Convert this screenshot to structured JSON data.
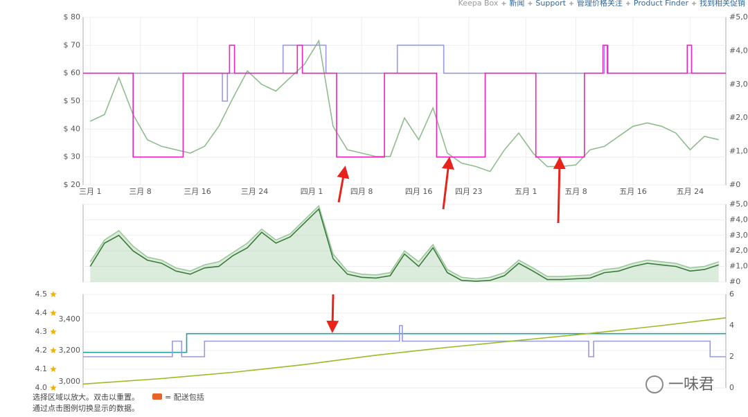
{
  "nav": [
    "Keepa Box",
    "新闻",
    "Support",
    "管理价格关注",
    "Product Finder",
    "找到相关促销"
  ],
  "chart_data": [
    {
      "type": "line",
      "grid": true,
      "xlim": [
        -1,
        89
      ],
      "xticks": [
        {
          "value": 0,
          "label": "三月 1"
        },
        {
          "value": 7,
          "label": "三月 8"
        },
        {
          "value": 15,
          "label": "三月 16"
        },
        {
          "value": 23,
          "label": "三月 24"
        },
        {
          "value": 31,
          "label": "四月 1"
        },
        {
          "value": 38,
          "label": "四月 8"
        },
        {
          "value": 46,
          "label": "四月 16"
        },
        {
          "value": 53,
          "label": "四月 23"
        },
        {
          "value": 61,
          "label": "五月 1"
        },
        {
          "value": 68,
          "label": "五月 8"
        },
        {
          "value": 76,
          "label": "五月 16"
        },
        {
          "value": 84,
          "label": "五月 24"
        }
      ],
      "ylim": [
        20,
        80
      ],
      "yticks": [
        {
          "value": 20,
          "label": "$ 20"
        },
        {
          "value": 30,
          "label": "$ 30"
        },
        {
          "value": 40,
          "label": "$ 40"
        },
        {
          "value": 50,
          "label": "$ 50"
        },
        {
          "value": 60,
          "label": "$ 60"
        },
        {
          "value": 70,
          "label": "$ 70"
        },
        {
          "value": 80,
          "label": "$ 80"
        }
      ],
      "y2lim": [
        0,
        5000
      ],
      "y2ticks": [
        {
          "value": 0,
          "label": "#0"
        },
        {
          "value": 1000,
          "label": "#1,000"
        },
        {
          "value": 2000,
          "label": "#2,000"
        },
        {
          "value": 3000,
          "label": "#3,000"
        },
        {
          "value": 4000,
          "label": "#4,000"
        },
        {
          "value": 5000,
          "label": "#5,000"
        }
      ],
      "series": [
        {
          "color": "#8fbc8f",
          "axis": "y2",
          "x": [
            0,
            2,
            4,
            6,
            8,
            10,
            12,
            14,
            16,
            18,
            20,
            22,
            24,
            26,
            28,
            30,
            32,
            34,
            36,
            38,
            40,
            42,
            44,
            46,
            48,
            50,
            52,
            54,
            56,
            58,
            60,
            62,
            64,
            66,
            68,
            70,
            72,
            74,
            76,
            78,
            80,
            82,
            84,
            86,
            88
          ],
          "values": [
            1900,
            2100,
            3200,
            2100,
            1350,
            1150,
            1050,
            950,
            1150,
            1750,
            2600,
            3400,
            3000,
            2800,
            3200,
            3600,
            4300,
            1750,
            1050,
            950,
            850,
            850,
            2000,
            1350,
            2300,
            950,
            650,
            550,
            400,
            1050,
            1550,
            950,
            550,
            550,
            600,
            1050,
            1150,
            1450,
            1750,
            1850,
            1750,
            1550,
            1050,
            1450,
            1350
          ]
        },
        {
          "color": "#9999dd",
          "x": [
            -1,
            18.5,
            18.5,
            19.2,
            19.2,
            27,
            27,
            33,
            33,
            43,
            43,
            49.5,
            49.5,
            72,
            72,
            72.5,
            72.5,
            89
          ],
          "values": [
            60,
            60,
            50,
            50,
            60,
            60,
            70,
            70,
            60,
            60,
            70,
            70,
            60,
            60,
            70,
            70,
            60,
            60
          ]
        },
        {
          "color": "#ee22bb",
          "x": [
            -1,
            6,
            6,
            13,
            13,
            19.5,
            19.5,
            20.2,
            20.2,
            29,
            29,
            29.7,
            29.7,
            34.5,
            34.5,
            41.2,
            41.2,
            48.5,
            48.5,
            55.3,
            55.3,
            62.4,
            62.4,
            69.2,
            69.2,
            71.8,
            71.8,
            72.4,
            72.4,
            83.6,
            83.6,
            84.2,
            84.2,
            89
          ],
          "values": [
            60,
            60,
            30,
            30,
            60,
            60,
            70,
            70,
            60,
            60,
            70,
            70,
            60,
            60,
            30,
            30,
            60,
            60,
            30,
            30,
            60,
            60,
            30,
            30,
            60,
            60,
            70,
            70,
            60,
            60,
            70,
            70,
            60,
            60
          ]
        }
      ]
    },
    {
      "type": "line",
      "grid": true,
      "xlim": [
        -1,
        89
      ],
      "y2lim": [
        0,
        5000
      ],
      "y2ticks": [
        {
          "value": 0,
          "label": "#0"
        },
        {
          "value": 1000,
          "label": "#1,000"
        },
        {
          "value": 2000,
          "label": "#2,000"
        },
        {
          "value": 3000,
          "label": "#3,000"
        },
        {
          "value": 4000,
          "label": "#4,000"
        },
        {
          "value": 5000,
          "label": "#5,000"
        }
      ],
      "series": [
        {
          "color": "#9bc89b",
          "axis": "y2",
          "fill": true,
          "x": [
            0,
            2,
            4,
            6,
            8,
            10,
            12,
            14,
            16,
            18,
            20,
            22,
            24,
            26,
            28,
            30,
            32,
            34,
            36,
            38,
            40,
            42,
            44,
            46,
            48,
            50,
            52,
            54,
            56,
            58,
            60,
            62,
            64,
            66,
            68,
            70,
            72,
            74,
            76,
            78,
            80,
            82,
            84,
            86,
            88
          ],
          "values": [
            1300,
            2700,
            3300,
            2300,
            1600,
            1400,
            900,
            700,
            1100,
            1300,
            1900,
            2500,
            3400,
            2700,
            3100,
            4000,
            4900,
            1800,
            700,
            500,
            450,
            600,
            2000,
            1300,
            2400,
            800,
            300,
            200,
            300,
            600,
            1400,
            900,
            350,
            350,
            400,
            450,
            800,
            900,
            1200,
            1400,
            1300,
            1200,
            900,
            1000,
            1300
          ]
        },
        {
          "color": "#3a7a3a",
          "axis": "y2",
          "x": [
            0,
            2,
            4,
            6,
            8,
            10,
            12,
            14,
            16,
            18,
            20,
            22,
            24,
            26,
            28,
            30,
            32,
            34,
            36,
            38,
            40,
            42,
            44,
            46,
            48,
            50,
            52,
            54,
            56,
            58,
            60,
            62,
            64,
            66,
            68,
            70,
            72,
            74,
            76,
            78,
            80,
            82,
            84,
            86,
            88
          ],
          "values": [
            1000,
            2500,
            3000,
            2000,
            1400,
            1200,
            700,
            500,
            900,
            1000,
            1700,
            2200,
            3200,
            2500,
            2900,
            3800,
            4700,
            1500,
            500,
            300,
            250,
            400,
            1800,
            1000,
            2200,
            600,
            100,
            50,
            100,
            400,
            1200,
            700,
            150,
            150,
            200,
            250,
            600,
            700,
            1000,
            1200,
            1100,
            1000,
            700,
            800,
            1100
          ]
        }
      ]
    },
    {
      "type": "line",
      "grid": true,
      "xlim": [
        -1,
        89
      ],
      "ylim": [
        4.0,
        4.5
      ],
      "yticks": [
        {
          "value": 4.0,
          "label": "4.0"
        },
        4.1,
        4.2,
        4.3,
        4.4,
        4.5
      ],
      "y2lim": [
        2960,
        3560
      ],
      "y2ticks": [
        {
          "value": 3000,
          "label": "3,000"
        },
        {
          "value": 3200,
          "label": "3,200"
        },
        {
          "value": 3400,
          "label": "3,400"
        }
      ],
      "y3lim": [
        0,
        6
      ],
      "y3ticks": [
        0,
        2,
        4,
        6
      ],
      "series": [
        {
          "color": "#20a0a0",
          "x": [
            -1,
            13.5,
            13.5,
            89
          ],
          "values": [
            4.19,
            4.19,
            4.29,
            4.29
          ]
        },
        {
          "color": "#9999dd",
          "axis": "y3",
          "x": [
            -1,
            11.5,
            11.5,
            12.8,
            12.8,
            16,
            16,
            43.3,
            43.3,
            43.7,
            43.7,
            69.8,
            69.8,
            70.5,
            70.5,
            71.4,
            71.4,
            86.8,
            86.8,
            89
          ],
          "values": [
            2,
            2,
            3,
            3,
            2,
            2,
            3,
            3,
            4,
            4,
            3,
            3,
            2,
            2,
            3,
            3,
            3,
            3,
            2,
            2
          ]
        },
        {
          "color": "#99bb22",
          "axis": "y2",
          "x": [
            -1,
            10,
            20,
            30,
            40,
            50,
            60,
            70,
            80,
            89
          ],
          "values": [
            2985,
            3020,
            3060,
            3110,
            3170,
            3220,
            3265,
            3310,
            3360,
            3410
          ]
        }
      ]
    }
  ],
  "footer": {
    "hint": "选择区域以放大。双击以重置。",
    "shipping": "= 配送包括",
    "toggle": "通过点击图例切换显示的数据。"
  },
  "watermark": "一味君"
}
